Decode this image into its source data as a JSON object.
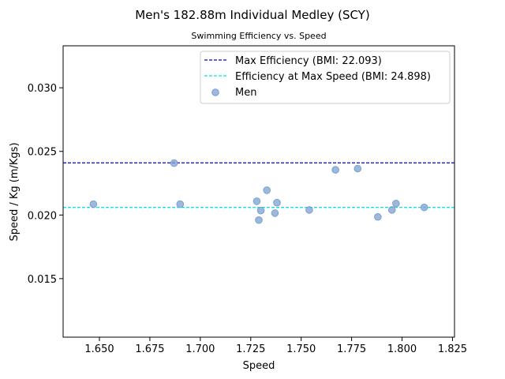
{
  "chart_data": {
    "type": "scatter",
    "title": "Men's 182.88m Individual Medley (SCY)",
    "subtitle": "Swimming Efficiency vs. Speed",
    "xlabel": "Speed",
    "ylabel": "Speed / Kg (m/Kgs)",
    "xlim": [
      1.632,
      1.826
    ],
    "ylim": [
      0.0104,
      0.0333
    ],
    "xticks": [
      1.65,
      1.675,
      1.7,
      1.725,
      1.75,
      1.775,
      1.8,
      1.825
    ],
    "xtick_labels": [
      "1.650",
      "1.675",
      "1.700",
      "1.725",
      "1.750",
      "1.775",
      "1.800",
      "1.825"
    ],
    "yticks": [
      0.015,
      0.02,
      0.025,
      0.03
    ],
    "ytick_labels": [
      "0.015",
      "0.020",
      "0.025",
      "0.030"
    ],
    "grid": false,
    "legend_placement": "top-right",
    "series": [
      {
        "name": "Men",
        "color": "#7ba0d0",
        "points": [
          {
            "x": 1.647,
            "y": 0.02085
          },
          {
            "x": 1.687,
            "y": 0.02408
          },
          {
            "x": 1.69,
            "y": 0.02085
          },
          {
            "x": 1.728,
            "y": 0.02108
          },
          {
            "x": 1.729,
            "y": 0.0196
          },
          {
            "x": 1.73,
            "y": 0.02035
          },
          {
            "x": 1.733,
            "y": 0.02195
          },
          {
            "x": 1.737,
            "y": 0.02015
          },
          {
            "x": 1.738,
            "y": 0.02097
          },
          {
            "x": 1.754,
            "y": 0.0204
          },
          {
            "x": 1.767,
            "y": 0.02355
          },
          {
            "x": 1.778,
            "y": 0.02365
          },
          {
            "x": 1.788,
            "y": 0.01985
          },
          {
            "x": 1.795,
            "y": 0.0204
          },
          {
            "x": 1.797,
            "y": 0.0209
          },
          {
            "x": 1.811,
            "y": 0.0206
          }
        ]
      }
    ],
    "reference_lines": [
      {
        "name": "Max Efficiency (BMI: 22.093)",
        "y": 0.0241,
        "color": "#0000cc",
        "style": "dashed"
      },
      {
        "name": "Efficiency at Max Speed (BMI: 24.898)",
        "y": 0.0206,
        "color": "#00e5e5",
        "style": "dashed"
      }
    ],
    "legend": [
      {
        "label": "Max Efficiency (BMI: 22.093)",
        "kind": "line",
        "color": "#0000cc"
      },
      {
        "label": "Efficiency at Max Speed (BMI: 24.898)",
        "kind": "line",
        "color": "#00e5e5"
      },
      {
        "label": "Men",
        "kind": "marker",
        "color": "#7ba0d0"
      }
    ]
  }
}
